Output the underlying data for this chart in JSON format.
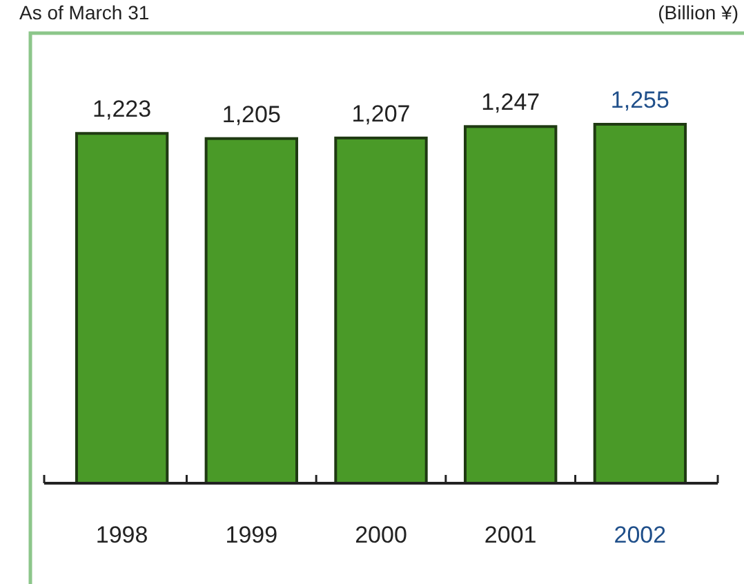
{
  "chart_data": {
    "type": "bar",
    "subtitle": "As of March 31",
    "annotations": [
      "(Billion ¥)"
    ],
    "categories": [
      "1998",
      "1999",
      "2000",
      "2001",
      "2002"
    ],
    "values": [
      1223,
      1205,
      1207,
      1247,
      1255
    ],
    "value_labels": [
      "1,223",
      "1,205",
      "1,207",
      "1,247",
      "1,255"
    ],
    "color": "#4a9a28",
    "tick_labels": "x"
  }
}
